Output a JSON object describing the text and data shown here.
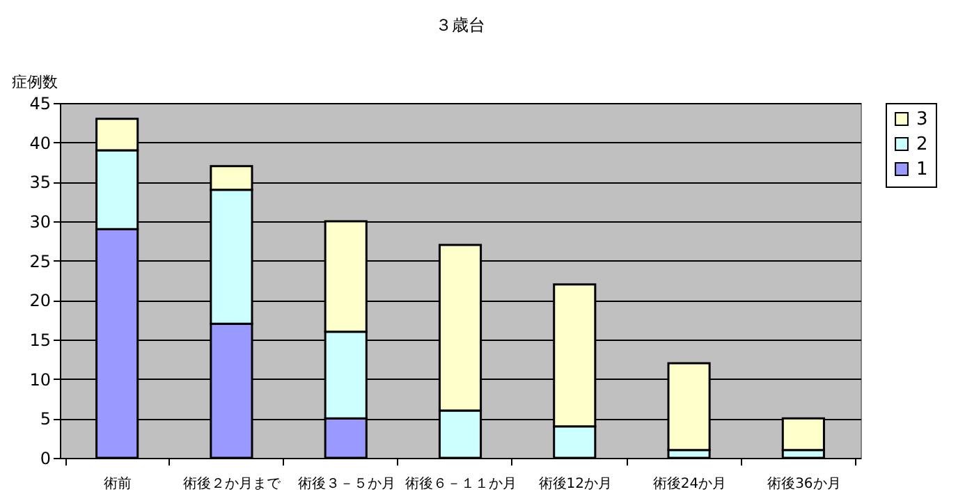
{
  "chart_data": {
    "type": "bar",
    "title": "３歳台",
    "ylabel": "症例数",
    "stacked": true,
    "categories": [
      "術前",
      "術後２か月まで",
      "術後３－５か月",
      "術後６－１１か月",
      "術後12か月",
      "術後24か月",
      "術後36か月"
    ],
    "series": [
      {
        "name": "1",
        "color": "#9999ff",
        "values": [
          29,
          17,
          5,
          0,
          0,
          0,
          0
        ]
      },
      {
        "name": "2",
        "color": "#ccffff",
        "values": [
          10,
          17,
          11,
          6,
          4,
          1,
          1
        ]
      },
      {
        "name": "3",
        "color": "#ffffcc",
        "values": [
          4,
          3,
          14,
          21,
          18,
          11,
          4
        ]
      }
    ],
    "ylim": [
      0,
      45
    ],
    "yticks": [
      0,
      5,
      10,
      15,
      20,
      25,
      30,
      35,
      40,
      45
    ],
    "grid": "y",
    "legend": "right"
  }
}
